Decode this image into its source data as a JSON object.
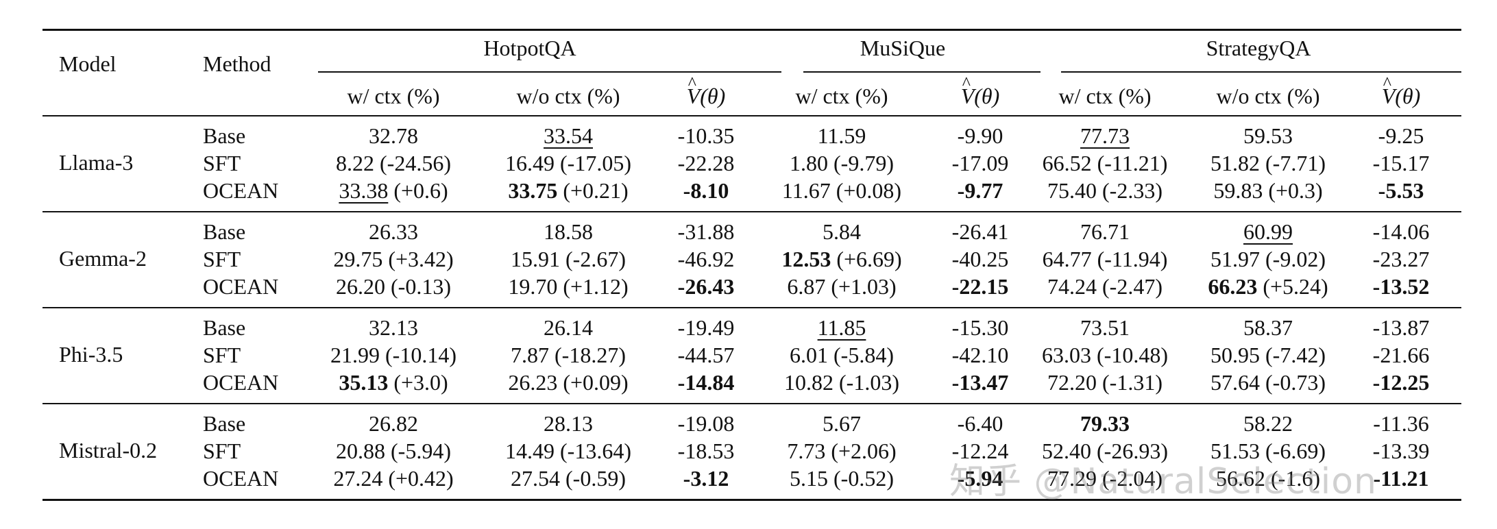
{
  "header": {
    "model": "Model",
    "method": "Method",
    "datasets": [
      "HotpotQA",
      "MuSiQue",
      "StrategyQA"
    ],
    "sub": [
      "w/ ctx (%)",
      "w/o ctx (%)",
      "V",
      "(θ)",
      "w/ ctx (%)",
      "V",
      "(θ)",
      "w/ ctx (%)",
      "w/o ctx (%)",
      "V",
      "(θ)"
    ]
  },
  "groups": [
    {
      "model": "Llama-3",
      "rows": [
        [
          "Base",
          "32.78",
          "33.54",
          "-10.35",
          "11.59",
          "-9.90",
          "77.73",
          "59.53",
          "-9.25"
        ],
        [
          "SFT",
          "8.22 (-24.56)",
          "16.49 (-17.05)",
          "-22.28",
          "1.80 (-9.79)",
          "-17.09",
          "66.52 (-11.21)",
          "51.82 (-7.71)",
          "-15.17"
        ],
        [
          "OCEAN",
          "33.38",
          " (+0.6)",
          "33.75",
          " (+0.21)",
          "-8.10",
          "11.67 (+0.08)",
          "-9.77",
          "75.40 (-2.33)",
          "59.83 (+0.3)",
          "-5.53"
        ]
      ]
    },
    {
      "model": "Gemma-2",
      "rows": [
        [
          "Base",
          "26.33",
          "18.58",
          "-31.88",
          "5.84",
          "-26.41",
          "76.71",
          "60.99",
          "-14.06"
        ],
        [
          "SFT",
          "29.75 (+3.42)",
          "15.91 (-2.67)",
          "-46.92",
          "12.53",
          " (+6.69)",
          "-40.25",
          "64.77 (-11.94)",
          "51.97 (-9.02)",
          "-23.27"
        ],
        [
          "OCEAN",
          "26.20 (-0.13)",
          "19.70 (+1.12)",
          "-26.43",
          "6.87 (+1.03)",
          "-22.15",
          "74.24 (-2.47)",
          "66.23",
          " (+5.24)",
          "-13.52"
        ]
      ]
    },
    {
      "model": "Phi-3.5",
      "rows": [
        [
          "Base",
          "32.13",
          "26.14",
          "-19.49",
          "11.85",
          "-15.30",
          "73.51",
          "58.37",
          "-13.87"
        ],
        [
          "SFT",
          "21.99 (-10.14)",
          "7.87 (-18.27)",
          "-44.57",
          "6.01 (-5.84)",
          "-42.10",
          "63.03 (-10.48)",
          "50.95 (-7.42)",
          "-21.66"
        ],
        [
          "OCEAN",
          "35.13",
          " (+3.0)",
          "26.23 (+0.09)",
          "-14.84",
          "10.82 (-1.03)",
          "-13.47",
          "72.20 (-1.31)",
          "57.64 (-0.73)",
          "-12.25"
        ]
      ]
    },
    {
      "model": "Mistral-0.2",
      "rows": [
        [
          "Base",
          "26.82",
          "28.13",
          "-19.08",
          "5.67",
          "-6.40",
          "79.33",
          "58.22",
          "-11.36"
        ],
        [
          "SFT",
          "20.88 (-5.94)",
          "14.49 (-13.64)",
          "-18.53",
          "7.73 (+2.06)",
          "-12.24",
          "52.40 (-26.93)",
          "51.53 (-6.69)",
          "-13.39"
        ],
        [
          "OCEAN",
          "27.24 (+0.42)",
          "27.54 (-0.59)",
          "-3.12",
          "5.15 (-0.52)",
          "-5.94",
          "77.29 (-2.04)",
          "56.62 (-1.6)",
          "-11.21"
        ]
      ]
    }
  ],
  "watermark": "知乎 @NaturalSelection"
}
